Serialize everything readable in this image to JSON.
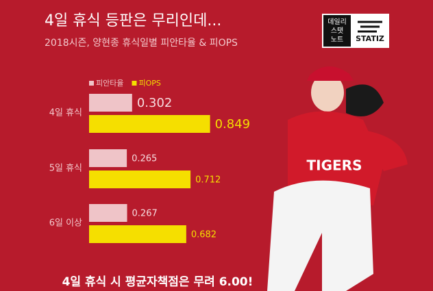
{
  "chart_data": {
    "type": "bar",
    "orientation": "horizontal",
    "title": "4일 휴식 등판은 무리인데...",
    "subtitle": "2018시즌, 양현종 휴식일별 피안타율 & 피OPS",
    "categories": [
      "4일 휴식",
      "5일 휴식",
      "6일 이상"
    ],
    "series": [
      {
        "name": "피안타율",
        "color": "#efc4c8",
        "values": [
          0.302,
          0.265,
          0.267
        ]
      },
      {
        "name": "피OPS",
        "color": "#f5df00",
        "values": [
          0.849,
          0.712,
          0.682
        ]
      }
    ],
    "annotation": "4일 휴식 시 평균자책점은 무려 6.00!"
  },
  "branding": {
    "logo_lines": [
      "데일리",
      "스탯",
      "노트"
    ],
    "logo_name": "STATIZ"
  }
}
